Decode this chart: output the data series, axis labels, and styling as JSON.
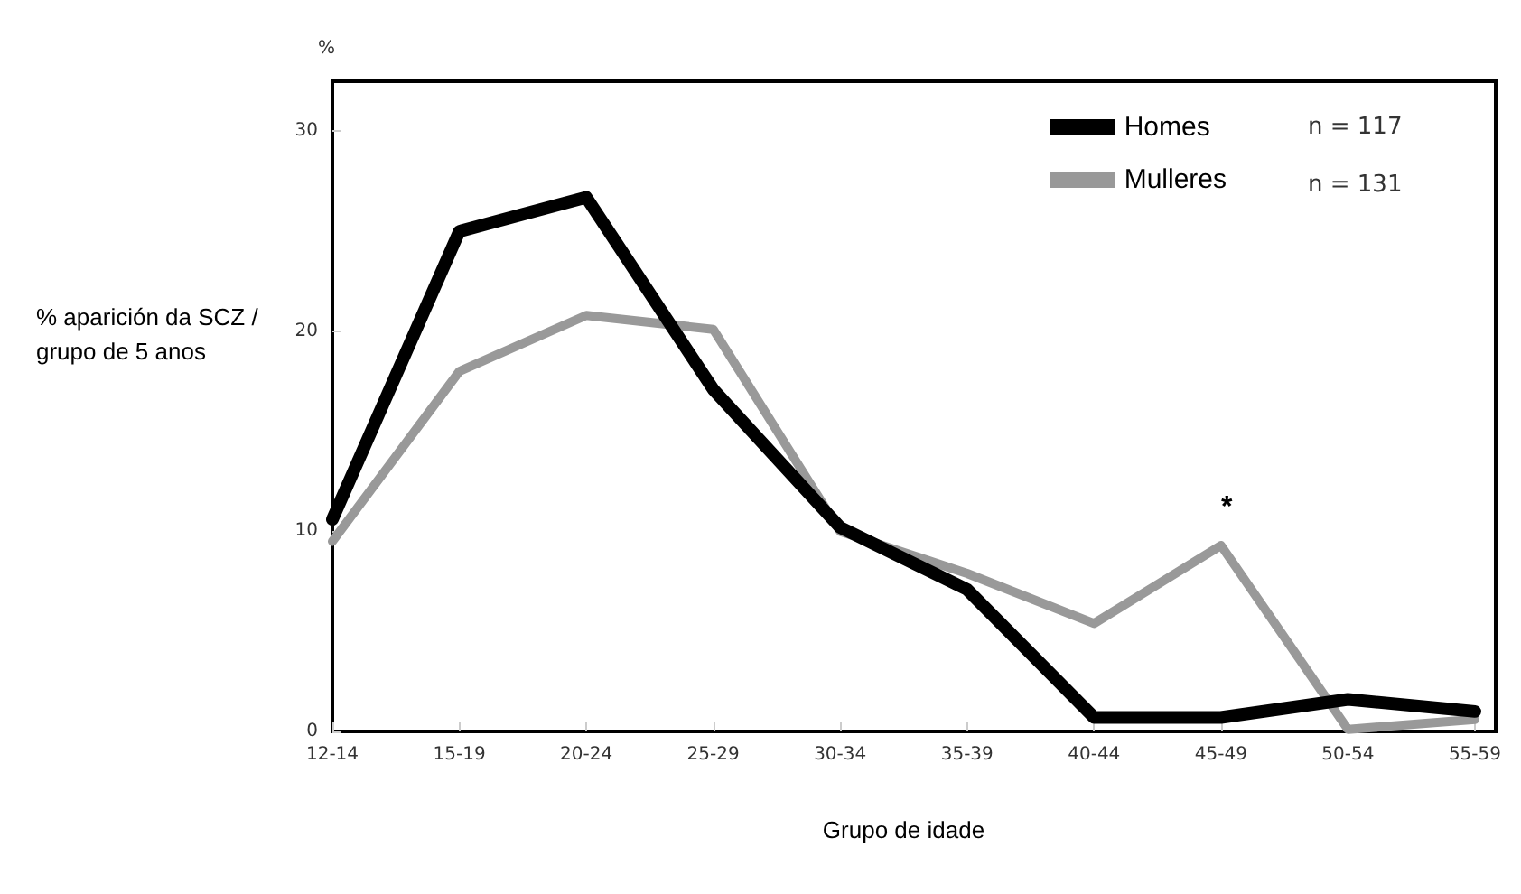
{
  "chart_data": {
    "type": "line",
    "ylabel": "% aparición da SCZ / grupo de 5 anos",
    "xlabel": "Grupo de idade",
    "categories": [
      "12-14",
      "15-19",
      "20-24",
      "25-29",
      "30-34",
      "35-39",
      "40-44",
      "45-49",
      "50-54",
      "55-59"
    ],
    "series": [
      {
        "name": "Homes",
        "color": "#000000",
        "values": [
          10.6,
          25.0,
          26.7,
          17.1,
          10.2,
          7.1,
          0.7,
          0.7,
          1.6,
          1.0
        ]
      },
      {
        "name": "Mulleres",
        "color": "#999999",
        "values": [
          9.5,
          18.0,
          20.8,
          20.1,
          10.0,
          7.9,
          5.4,
          9.3,
          0.1,
          0.6
        ]
      }
    ],
    "annotations": [
      "%",
      "n = 117",
      "n = 131",
      "*"
    ],
    "ylim": [
      0,
      32.5
    ],
    "yticks": [
      0,
      10,
      20,
      30
    ],
    "grid": false,
    "legend": "top right",
    "marker": "none",
    "line_style": "solid"
  }
}
